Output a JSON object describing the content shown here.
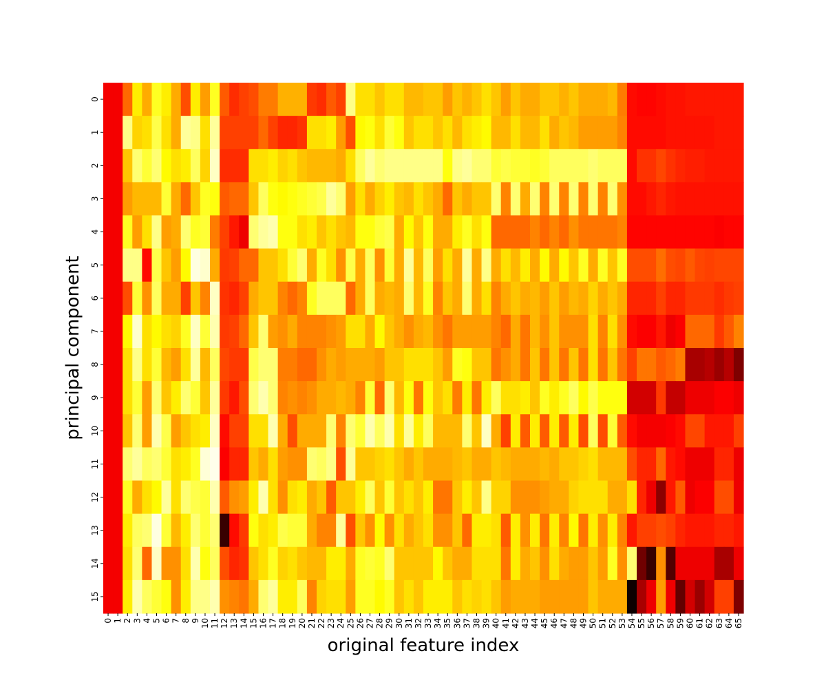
{
  "chart_data": {
    "type": "heatmap",
    "colormap": "hot",
    "title": "",
    "xlabel": "original feature index",
    "ylabel": "principal component",
    "x_categories": [
      "0",
      "1",
      "2",
      "3",
      "4",
      "5",
      "6",
      "7",
      "8",
      "9",
      "10",
      "11",
      "12",
      "13",
      "14",
      "15",
      "16",
      "17",
      "18",
      "19",
      "20",
      "21",
      "22",
      "23",
      "24",
      "25",
      "26",
      "27",
      "28",
      "29",
      "30",
      "31",
      "32",
      "33",
      "34",
      "35",
      "36",
      "37",
      "38",
      "39",
      "40",
      "41",
      "42",
      "43",
      "44",
      "45",
      "46",
      "47",
      "48",
      "49",
      "50",
      "51",
      "52",
      "53",
      "54",
      "55",
      "56",
      "57",
      "58",
      "59",
      "60",
      "61",
      "62",
      "63",
      "64",
      "65"
    ],
    "y_categories": [
      "0",
      "1",
      "2",
      "3",
      "4",
      "5",
      "6",
      "7",
      "8",
      "9",
      "10",
      "11",
      "12",
      "13",
      "14",
      "15"
    ],
    "value_range": [
      0,
      1
    ],
    "values": [
      [
        0.35,
        0.35,
        0.52,
        0.72,
        0.62,
        0.78,
        0.72,
        0.62,
        0.48,
        0.72,
        0.6,
        0.78,
        0.5,
        0.43,
        0.46,
        0.48,
        0.55,
        0.55,
        0.63,
        0.63,
        0.63,
        0.45,
        0.43,
        0.5,
        0.46,
        0.88,
        0.7,
        0.7,
        0.66,
        0.7,
        0.7,
        0.64,
        0.64,
        0.66,
        0.66,
        0.6,
        0.66,
        0.63,
        0.66,
        0.7,
        0.66,
        0.6,
        0.66,
        0.62,
        0.62,
        0.66,
        0.66,
        0.63,
        0.66,
        0.62,
        0.62,
        0.62,
        0.64,
        0.55,
        0.38,
        0.37,
        0.37,
        0.38,
        0.39,
        0.39,
        0.4,
        0.4,
        0.4,
        0.4,
        0.4,
        0.4
      ],
      [
        0.35,
        0.35,
        0.88,
        0.68,
        0.7,
        0.82,
        0.7,
        0.62,
        0.9,
        0.88,
        0.7,
        0.9,
        0.46,
        0.46,
        0.46,
        0.46,
        0.52,
        0.46,
        0.42,
        0.42,
        0.44,
        0.7,
        0.7,
        0.72,
        0.6,
        0.48,
        0.74,
        0.76,
        0.7,
        0.8,
        0.76,
        0.66,
        0.7,
        0.7,
        0.66,
        0.7,
        0.64,
        0.7,
        0.72,
        0.74,
        0.64,
        0.64,
        0.7,
        0.64,
        0.64,
        0.7,
        0.62,
        0.66,
        0.64,
        0.6,
        0.6,
        0.6,
        0.6,
        0.56,
        0.38,
        0.38,
        0.38,
        0.38,
        0.39,
        0.39,
        0.39,
        0.39,
        0.39,
        0.4,
        0.4,
        0.4
      ],
      [
        0.35,
        0.35,
        0.66,
        0.86,
        0.8,
        0.86,
        0.74,
        0.7,
        0.72,
        0.84,
        0.68,
        0.94,
        0.43,
        0.43,
        0.43,
        0.7,
        0.7,
        0.72,
        0.68,
        0.7,
        0.66,
        0.64,
        0.64,
        0.64,
        0.62,
        0.7,
        0.84,
        0.9,
        0.86,
        0.88,
        0.88,
        0.88,
        0.88,
        0.88,
        0.88,
        0.76,
        0.88,
        0.9,
        0.86,
        0.86,
        0.8,
        0.82,
        0.8,
        0.8,
        0.78,
        0.8,
        0.84,
        0.84,
        0.84,
        0.84,
        0.86,
        0.84,
        0.84,
        0.84,
        0.38,
        0.44,
        0.44,
        0.47,
        0.44,
        0.42,
        0.41,
        0.41,
        0.4,
        0.4,
        0.4,
        0.4
      ],
      [
        0.35,
        0.35,
        0.6,
        0.64,
        0.64,
        0.64,
        0.8,
        0.62,
        0.52,
        0.66,
        0.78,
        0.76,
        0.5,
        0.52,
        0.52,
        0.66,
        0.84,
        0.76,
        0.74,
        0.76,
        0.78,
        0.8,
        0.82,
        0.9,
        0.86,
        0.6,
        0.7,
        0.62,
        0.68,
        0.72,
        0.66,
        0.64,
        0.7,
        0.66,
        0.62,
        0.52,
        0.66,
        0.62,
        0.66,
        0.66,
        0.86,
        0.56,
        0.86,
        0.62,
        0.86,
        0.56,
        0.86,
        0.56,
        0.86,
        0.56,
        0.86,
        0.56,
        0.86,
        0.58,
        0.38,
        0.38,
        0.4,
        0.42,
        0.4,
        0.39,
        0.39,
        0.39,
        0.39,
        0.39,
        0.39,
        0.39
      ],
      [
        0.35,
        0.35,
        0.78,
        0.6,
        0.7,
        0.88,
        0.6,
        0.62,
        0.86,
        0.78,
        0.8,
        0.55,
        0.46,
        0.4,
        0.34,
        0.86,
        0.9,
        0.92,
        0.76,
        0.76,
        0.7,
        0.72,
        0.66,
        0.7,
        0.66,
        0.64,
        0.76,
        0.76,
        0.8,
        0.82,
        0.62,
        0.74,
        0.66,
        0.76,
        0.62,
        0.62,
        0.72,
        0.78,
        0.7,
        0.76,
        0.52,
        0.52,
        0.52,
        0.52,
        0.56,
        0.52,
        0.56,
        0.52,
        0.58,
        0.54,
        0.54,
        0.54,
        0.54,
        0.56,
        0.37,
        0.37,
        0.37,
        0.37,
        0.37,
        0.37,
        0.37,
        0.37,
        0.37,
        0.36,
        0.37,
        0.37
      ],
      [
        0.35,
        0.35,
        0.88,
        0.88,
        0.38,
        0.82,
        0.66,
        0.6,
        0.74,
        0.97,
        0.95,
        0.62,
        0.45,
        0.46,
        0.52,
        0.52,
        0.66,
        0.66,
        0.7,
        0.8,
        0.86,
        0.62,
        0.78,
        0.7,
        0.58,
        0.82,
        0.62,
        0.84,
        0.58,
        0.8,
        0.62,
        0.9,
        0.64,
        0.84,
        0.6,
        0.7,
        0.62,
        0.9,
        0.62,
        0.88,
        0.62,
        0.7,
        0.64,
        0.72,
        0.62,
        0.74,
        0.62,
        0.74,
        0.66,
        0.78,
        0.62,
        0.78,
        0.66,
        0.78,
        0.48,
        0.48,
        0.48,
        0.53,
        0.48,
        0.47,
        0.5,
        0.47,
        0.46,
        0.47,
        0.47,
        0.47
      ],
      [
        0.35,
        0.35,
        0.48,
        0.8,
        0.58,
        0.84,
        0.62,
        0.62,
        0.46,
        0.66,
        0.56,
        0.94,
        0.44,
        0.42,
        0.46,
        0.62,
        0.66,
        0.66,
        0.56,
        0.52,
        0.56,
        0.78,
        0.84,
        0.84,
        0.84,
        0.52,
        0.62,
        0.84,
        0.62,
        0.64,
        0.62,
        0.86,
        0.64,
        0.78,
        0.56,
        0.66,
        0.62,
        0.86,
        0.62,
        0.7,
        0.56,
        0.62,
        0.66,
        0.62,
        0.64,
        0.6,
        0.66,
        0.6,
        0.64,
        0.62,
        0.68,
        0.62,
        0.66,
        0.62,
        0.42,
        0.42,
        0.42,
        0.46,
        0.42,
        0.42,
        0.45,
        0.45,
        0.45,
        0.43,
        0.45,
        0.46
      ],
      [
        0.35,
        0.35,
        0.74,
        0.95,
        0.7,
        0.74,
        0.7,
        0.68,
        0.78,
        0.94,
        0.8,
        0.92,
        0.45,
        0.46,
        0.52,
        0.66,
        0.86,
        0.6,
        0.58,
        0.62,
        0.56,
        0.56,
        0.56,
        0.58,
        0.6,
        0.7,
        0.7,
        0.62,
        0.74,
        0.66,
        0.62,
        0.58,
        0.62,
        0.64,
        0.58,
        0.54,
        0.6,
        0.6,
        0.6,
        0.6,
        0.56,
        0.52,
        0.62,
        0.54,
        0.64,
        0.58,
        0.66,
        0.58,
        0.58,
        0.58,
        0.7,
        0.56,
        0.7,
        0.58,
        0.38,
        0.36,
        0.36,
        0.4,
        0.34,
        0.36,
        0.52,
        0.52,
        0.52,
        0.45,
        0.5,
        0.56
      ],
      [
        0.35,
        0.35,
        0.7,
        0.88,
        0.7,
        0.8,
        0.64,
        0.6,
        0.7,
        0.9,
        0.64,
        0.84,
        0.47,
        0.45,
        0.45,
        0.82,
        0.86,
        0.86,
        0.55,
        0.55,
        0.52,
        0.52,
        0.58,
        0.62,
        0.6,
        0.62,
        0.62,
        0.62,
        0.6,
        0.66,
        0.66,
        0.7,
        0.7,
        0.7,
        0.66,
        0.6,
        0.78,
        0.76,
        0.66,
        0.66,
        0.54,
        0.58,
        0.62,
        0.54,
        0.66,
        0.54,
        0.66,
        0.54,
        0.66,
        0.54,
        0.7,
        0.54,
        0.66,
        0.54,
        0.46,
        0.54,
        0.54,
        0.5,
        0.52,
        0.55,
        0.24,
        0.24,
        0.26,
        0.22,
        0.26,
        0.18
      ],
      [
        0.35,
        0.35,
        0.7,
        0.8,
        0.6,
        0.86,
        0.66,
        0.72,
        0.86,
        0.8,
        0.66,
        0.9,
        0.45,
        0.4,
        0.48,
        0.86,
        0.92,
        0.86,
        0.56,
        0.58,
        0.56,
        0.58,
        0.62,
        0.62,
        0.64,
        0.62,
        0.56,
        0.8,
        0.52,
        0.86,
        0.64,
        0.76,
        0.54,
        0.76,
        0.66,
        0.7,
        0.55,
        0.72,
        0.54,
        0.72,
        0.84,
        0.7,
        0.7,
        0.72,
        0.66,
        0.78,
        0.72,
        0.78,
        0.84,
        0.74,
        0.82,
        0.76,
        0.76,
        0.76,
        0.3,
        0.3,
        0.3,
        0.45,
        0.28,
        0.28,
        0.34,
        0.34,
        0.34,
        0.36,
        0.36,
        0.34
      ],
      [
        0.35,
        0.35,
        0.66,
        0.86,
        0.6,
        0.92,
        0.82,
        0.6,
        0.66,
        0.7,
        0.72,
        0.94,
        0.38,
        0.46,
        0.46,
        0.7,
        0.7,
        0.92,
        0.62,
        0.48,
        0.62,
        0.62,
        0.62,
        0.86,
        0.56,
        0.86,
        0.8,
        0.92,
        0.84,
        0.92,
        0.7,
        0.9,
        0.72,
        0.84,
        0.64,
        0.64,
        0.64,
        0.86,
        0.66,
        0.94,
        0.62,
        0.46,
        0.72,
        0.5,
        0.72,
        0.5,
        0.72,
        0.5,
        0.72,
        0.48,
        0.84,
        0.48,
        0.8,
        0.5,
        0.38,
        0.35,
        0.35,
        0.35,
        0.36,
        0.38,
        0.47,
        0.47,
        0.4,
        0.4,
        0.4,
        0.46
      ],
      [
        0.35,
        0.35,
        0.86,
        0.9,
        0.84,
        0.86,
        0.8,
        0.7,
        0.72,
        0.78,
        0.96,
        0.98,
        0.36,
        0.42,
        0.42,
        0.66,
        0.62,
        0.7,
        0.6,
        0.58,
        0.58,
        0.86,
        0.84,
        0.88,
        0.48,
        0.9,
        0.66,
        0.66,
        0.68,
        0.7,
        0.66,
        0.62,
        0.66,
        0.62,
        0.62,
        0.62,
        0.64,
        0.66,
        0.62,
        0.62,
        0.66,
        0.64,
        0.62,
        0.62,
        0.62,
        0.64,
        0.62,
        0.66,
        0.66,
        0.68,
        0.7,
        0.64,
        0.64,
        0.64,
        0.48,
        0.42,
        0.42,
        0.52,
        0.4,
        0.38,
        0.34,
        0.34,
        0.34,
        0.42,
        0.42,
        0.34
      ],
      [
        0.35,
        0.35,
        0.78,
        0.62,
        0.7,
        0.74,
        0.9,
        0.7,
        0.86,
        0.82,
        0.8,
        0.92,
        0.5,
        0.58,
        0.6,
        0.72,
        0.92,
        0.7,
        0.58,
        0.7,
        0.72,
        0.62,
        0.66,
        0.5,
        0.66,
        0.66,
        0.72,
        0.84,
        0.66,
        0.8,
        0.66,
        0.7,
        0.66,
        0.72,
        0.54,
        0.54,
        0.66,
        0.72,
        0.66,
        0.88,
        0.68,
        0.68,
        0.58,
        0.58,
        0.58,
        0.6,
        0.62,
        0.62,
        0.68,
        0.7,
        0.7,
        0.7,
        0.62,
        0.62,
        0.7,
        0.42,
        0.34,
        0.2,
        0.4,
        0.5,
        0.34,
        0.36,
        0.36,
        0.48,
        0.48,
        0.34
      ],
      [
        0.35,
        0.35,
        0.72,
        0.84,
        0.86,
        0.97,
        0.8,
        0.64,
        0.72,
        0.86,
        0.8,
        0.86,
        0.08,
        0.38,
        0.45,
        0.76,
        0.7,
        0.72,
        0.82,
        0.8,
        0.8,
        0.62,
        0.56,
        0.56,
        0.9,
        0.48,
        0.66,
        0.58,
        0.74,
        0.58,
        0.7,
        0.62,
        0.66,
        0.7,
        0.58,
        0.58,
        0.66,
        0.52,
        0.72,
        0.72,
        0.7,
        0.5,
        0.72,
        0.58,
        0.72,
        0.54,
        0.72,
        0.56,
        0.74,
        0.54,
        0.72,
        0.58,
        0.72,
        0.56,
        0.4,
        0.46,
        0.46,
        0.48,
        0.46,
        0.42,
        0.4,
        0.4,
        0.4,
        0.42,
        0.42,
        0.4
      ],
      [
        0.35,
        0.35,
        0.7,
        0.86,
        0.52,
        0.94,
        0.58,
        0.58,
        0.7,
        0.92,
        0.76,
        0.84,
        0.48,
        0.42,
        0.44,
        0.66,
        0.7,
        0.78,
        0.68,
        0.7,
        0.66,
        0.64,
        0.64,
        0.72,
        0.72,
        0.62,
        0.78,
        0.8,
        0.78,
        0.86,
        0.66,
        0.66,
        0.66,
        0.66,
        0.74,
        0.66,
        0.62,
        0.62,
        0.7,
        0.7,
        0.7,
        0.54,
        0.72,
        0.62,
        0.66,
        0.58,
        0.7,
        0.62,
        0.6,
        0.6,
        0.66,
        0.6,
        0.78,
        0.58,
        0.86,
        0.16,
        0.08,
        0.58,
        0.12,
        0.34,
        0.34,
        0.34,
        0.34,
        0.24,
        0.24,
        0.34
      ],
      [
        0.35,
        0.35,
        0.72,
        0.92,
        0.84,
        0.8,
        0.76,
        0.58,
        0.72,
        0.88,
        0.88,
        0.92,
        0.58,
        0.56,
        0.54,
        0.62,
        0.86,
        0.9,
        0.72,
        0.72,
        0.84,
        0.56,
        0.68,
        0.7,
        0.7,
        0.6,
        0.78,
        0.78,
        0.74,
        0.78,
        0.66,
        0.7,
        0.66,
        0.72,
        0.72,
        0.72,
        0.66,
        0.7,
        0.68,
        0.7,
        0.66,
        0.6,
        0.62,
        0.62,
        0.62,
        0.6,
        0.6,
        0.6,
        0.6,
        0.6,
        0.66,
        0.62,
        0.62,
        0.62,
        0.02,
        0.24,
        0.34,
        0.6,
        0.34,
        0.14,
        0.3,
        0.22,
        0.3,
        0.46,
        0.46,
        0.18
      ]
    ]
  }
}
